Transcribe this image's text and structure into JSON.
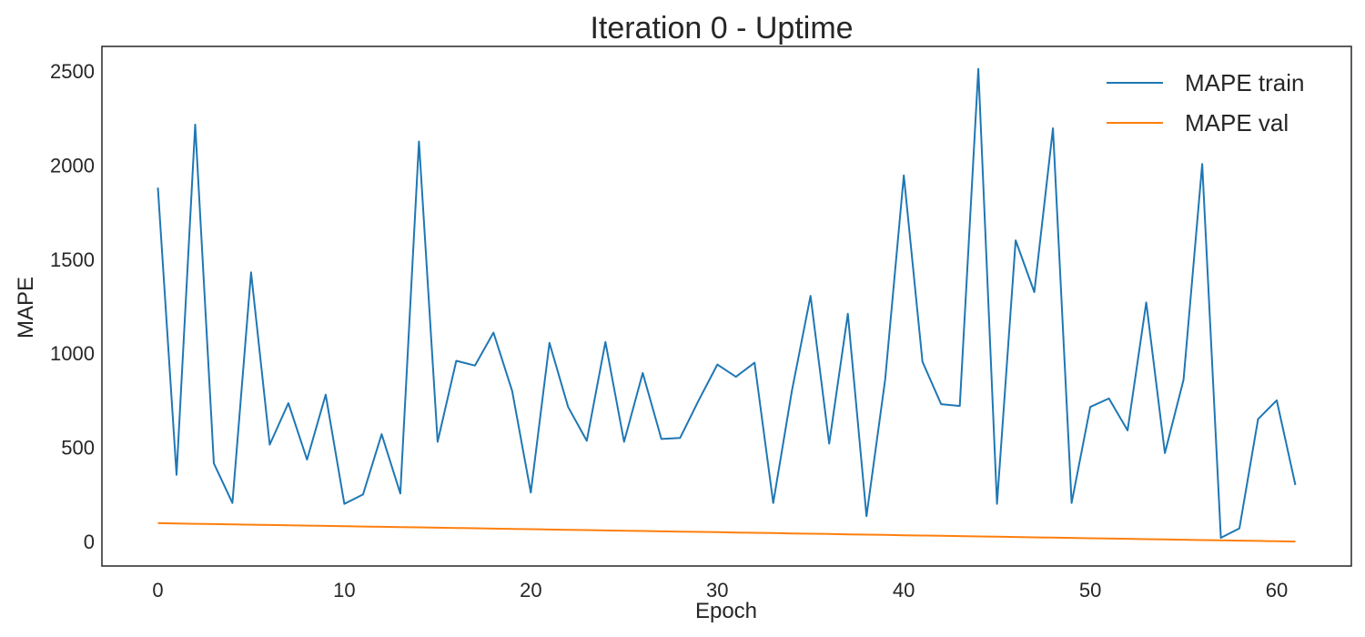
{
  "chart_data": {
    "type": "line",
    "title": "Iteration 0 - Uptime",
    "xlabel": "Epoch",
    "ylabel": "MAPE",
    "xlim": [
      -3,
      64
    ],
    "ylim": [
      -130,
      2630
    ],
    "x_ticks": [
      0,
      10,
      20,
      30,
      40,
      50,
      60
    ],
    "y_ticks": [
      0,
      500,
      1000,
      1500,
      2000,
      2500
    ],
    "grid": false,
    "legend_position": "top-right",
    "x": [
      0,
      1,
      2,
      3,
      4,
      5,
      6,
      7,
      8,
      9,
      10,
      11,
      12,
      13,
      14,
      15,
      16,
      17,
      18,
      19,
      20,
      21,
      22,
      23,
      24,
      25,
      26,
      27,
      28,
      29,
      30,
      31,
      32,
      33,
      34,
      35,
      36,
      37,
      38,
      39,
      40,
      41,
      42,
      43,
      44,
      45,
      46,
      47,
      48,
      49,
      50,
      51,
      52,
      53,
      54,
      55,
      56,
      57,
      58,
      59,
      60,
      61
    ],
    "series": [
      {
        "name": "MAPE train",
        "color": "#1f77b4",
        "values": [
          1880,
          355,
          2215,
          415,
          205,
          1430,
          515,
          735,
          435,
          780,
          200,
          250,
          570,
          255,
          2125,
          530,
          960,
          935,
          1110,
          800,
          260,
          1055,
          715,
          535,
          1060,
          530,
          895,
          545,
          550,
          750,
          940,
          875,
          950,
          205,
          800,
          1305,
          520,
          1210,
          135,
          860,
          1945,
          955,
          730,
          720,
          2510,
          200,
          1600,
          1325,
          2195,
          205,
          715,
          760,
          590,
          1270,
          470,
          860,
          2005,
          20,
          70,
          650,
          750,
          300
        ]
      },
      {
        "name": "MAPE val",
        "color": "#ff7f0e",
        "values": [
          97.6,
          96.0,
          94.4,
          92.8,
          91.2,
          89.6,
          88.0,
          86.4,
          84.8,
          83.2,
          81.6,
          80.0,
          78.4,
          76.8,
          75.2,
          73.6,
          72.0,
          70.4,
          68.8,
          67.2,
          65.6,
          64.0,
          62.4,
          60.8,
          59.2,
          57.6,
          56.0,
          54.4,
          52.8,
          51.2,
          49.6,
          48.0,
          46.4,
          44.8,
          43.2,
          41.6,
          40.0,
          38.4,
          36.8,
          35.2,
          33.6,
          32.0,
          30.4,
          28.8,
          27.2,
          25.6,
          24.0,
          22.4,
          20.8,
          19.2,
          17.6,
          16.0,
          14.4,
          12.8,
          11.2,
          9.6,
          8.0,
          6.4,
          4.8,
          3.2,
          1.6,
          0.0
        ]
      }
    ]
  }
}
